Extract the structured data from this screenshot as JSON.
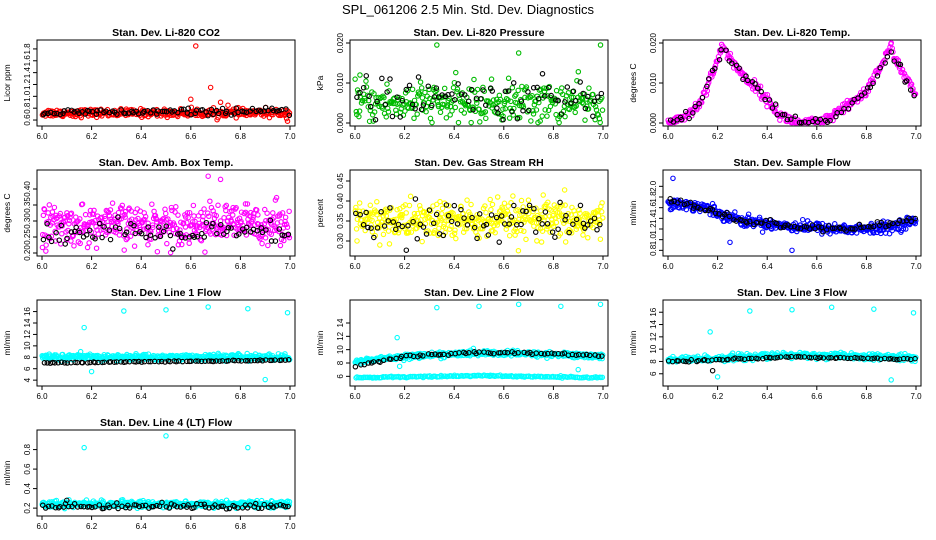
{
  "page_title": "SPL_061206  2.5 Min. Std. Dev. Diagnostics",
  "colors": {
    "red": "#ff0000",
    "green": "#00bb00",
    "magenta": "#ff00ff",
    "yellow": "#ffff00",
    "blue": "#0000ff",
    "cyan": "#00ffff",
    "black": "#000000"
  },
  "chart_data": [
    {
      "type": "scatter",
      "title": "Stan. Dev. Li-820 CO2",
      "ylabel": "Licor ppm",
      "xlim": [
        6.0,
        7.0
      ],
      "ylim": [
        0.55,
        1.9
      ],
      "xticks": [
        "6.0",
        "6.2",
        "6.4",
        "6.6",
        "6.8",
        "7.0"
      ],
      "yticks": [
        "0.6",
        "0.8",
        "1.0",
        "1.2",
        "1.4",
        "1.6",
        "1.8"
      ],
      "series": [
        {
          "name": "primary",
          "color": "#ff0000",
          "n": 330,
          "baseline": [
            [
              6.0,
              0.72
            ],
            [
              1.0,
              0.72
            ]
          ],
          "spread": 0.06,
          "outliers": [
            [
              6.62,
              1.85
            ],
            [
              6.68,
              1.15
            ],
            [
              6.6,
              0.95
            ],
            [
              6.72,
              0.9
            ],
            [
              6.75,
              0.85
            ],
            [
              6.99,
              0.58
            ]
          ]
        },
        {
          "name": "reference",
          "color": "#000000",
          "n": 90,
          "baseline": [
            [
              6.0,
              0.72
            ],
            [
              1.0,
              0.75
            ]
          ],
          "spread": 0.05,
          "outliers": []
        }
      ]
    },
    {
      "type": "scatter",
      "title": "Stan. Dev. Li-820 Pressure",
      "ylabel": "kPa",
      "xlim": [
        6.0,
        7.0
      ],
      "ylim": [
        0.0,
        0.02
      ],
      "xticks": [
        "6.0",
        "6.2",
        "6.4",
        "6.6",
        "6.8",
        "7.0"
      ],
      "yticks": [
        "0.000",
        "0.010",
        "0.020"
      ],
      "series": [
        {
          "name": "primary",
          "color": "#00bb00",
          "n": 330,
          "baseline": [
            [
              6.0,
              0.005
            ],
            [
              1.0,
              0.005
            ]
          ],
          "spread": 0.0045,
          "outliers": [
            [
              6.33,
              0.0195
            ],
            [
              6.66,
              0.0175
            ],
            [
              6.99,
              0.0195
            ],
            [
              6.02,
              0.012
            ]
          ]
        },
        {
          "name": "reference",
          "color": "#000000",
          "n": 80,
          "baseline": [
            [
              6.0,
              0.006
            ],
            [
              1.0,
              0.006
            ]
          ],
          "spread": 0.0045,
          "outliers": []
        }
      ]
    },
    {
      "type": "scatter",
      "title": "Stan. Dev. Li-820 Temp.",
      "ylabel": "degrees C",
      "xlim": [
        6.0,
        7.0
      ],
      "ylim": [
        0.0,
        0.02
      ],
      "xticks": [
        "6.0",
        "6.2",
        "6.4",
        "6.6",
        "6.8",
        "7.0"
      ],
      "yticks": [
        "0.000",
        "0.010",
        "0.020"
      ],
      "series": [
        {
          "name": "primary",
          "color": "#ff00ff",
          "n": 320,
          "baseline": [
            [
              6.0,
              0.0
            ],
            [
              6.08,
              0.002
            ],
            [
              6.13,
              0.005
            ],
            [
              6.22,
              0.019
            ],
            [
              6.3,
              0.012
            ],
            [
              6.37,
              0.008
            ],
            [
              6.45,
              0.002
            ],
            [
              6.52,
              0.0
            ],
            [
              6.62,
              0.0
            ],
            [
              6.72,
              0.004
            ],
            [
              6.8,
              0.008
            ],
            [
              6.9,
              0.019
            ],
            [
              6.95,
              0.012
            ],
            [
              7.0,
              0.007
            ]
          ],
          "spread": 0.0012,
          "outliers": []
        },
        {
          "name": "reference",
          "color": "#000000",
          "n": 75,
          "baseline": [
            [
              6.0,
              0.0
            ],
            [
              6.08,
              0.002
            ],
            [
              6.13,
              0.005
            ],
            [
              6.22,
              0.018
            ],
            [
              6.3,
              0.012
            ],
            [
              6.37,
              0.008
            ],
            [
              6.45,
              0.002
            ],
            [
              6.52,
              0.0
            ],
            [
              6.62,
              0.0
            ],
            [
              6.72,
              0.004
            ],
            [
              6.8,
              0.008
            ],
            [
              6.9,
              0.018
            ],
            [
              6.95,
              0.012
            ],
            [
              7.0,
              0.006
            ]
          ],
          "spread": 0.0012,
          "outliers": []
        }
      ]
    },
    {
      "type": "scatter",
      "title": "Stan. Dev. Amb. Box Temp.",
      "ylabel": "degrees C",
      "xlim": [
        6.0,
        7.0
      ],
      "ylim": [
        0.2,
        0.45
      ],
      "xticks": [
        "6.0",
        "6.2",
        "6.4",
        "6.6",
        "6.8",
        "7.0"
      ],
      "yticks": [
        "0.20",
        "0.25",
        "0.30",
        "0.35",
        "0.40"
      ],
      "series": [
        {
          "name": "primary",
          "color": "#ff00ff",
          "n": 430,
          "baseline": [
            [
              6.0,
              0.285
            ],
            [
              1.0,
              0.295
            ]
          ],
          "spread": 0.055,
          "outliers": [
            [
              6.67,
              0.44
            ],
            [
              6.72,
              0.43
            ]
          ]
        },
        {
          "name": "reference",
          "color": "#000000",
          "n": 80,
          "baseline": [
            [
              6.0,
              0.26
            ],
            [
              1.0,
              0.26
            ]
          ],
          "spread": 0.035,
          "outliers": []
        }
      ]
    },
    {
      "type": "scatter",
      "title": "Stan. Dev. Gas Stream RH",
      "ylabel": "percent",
      "xlim": [
        6.0,
        7.0
      ],
      "ylim": [
        0.27,
        0.47
      ],
      "xticks": [
        "6.0",
        "6.2",
        "6.4",
        "6.6",
        "6.8",
        "7.0"
      ],
      "yticks": [
        "0.30",
        "0.35",
        "0.40",
        "0.45"
      ],
      "series": [
        {
          "name": "primary",
          "color": "#ffff00",
          "n": 430,
          "baseline": [
            [
              6.0,
              0.35
            ],
            [
              1.0,
              0.35
            ]
          ],
          "spread": 0.045,
          "outliers": []
        },
        {
          "name": "reference",
          "color": "#000000",
          "n": 80,
          "baseline": [
            [
              6.0,
              0.35
            ],
            [
              1.0,
              0.35
            ]
          ],
          "spread": 0.04,
          "outliers": []
        }
      ]
    },
    {
      "type": "scatter",
      "title": "Stan. Dev. Sample Flow",
      "ylabel": "ml/min",
      "xlim": [
        6.0,
        7.0
      ],
      "ylim": [
        0.75,
        2.25
      ],
      "xticks": [
        "6.0",
        "6.2",
        "6.4",
        "6.6",
        "6.8",
        "7.0"
      ],
      "yticks": [
        "0.8",
        "1.0",
        "1.2",
        "1.4",
        "1.6",
        "1.8",
        "2.0"
      ],
      "series": [
        {
          "name": "primary",
          "color": "#0000ff",
          "n": 420,
          "baseline": [
            [
              6.0,
              1.7
            ],
            [
              6.15,
              1.6
            ],
            [
              6.3,
              1.35
            ],
            [
              6.5,
              1.25
            ],
            [
              6.7,
              1.2
            ],
            [
              6.85,
              1.2
            ],
            [
              7.0,
              1.35
            ]
          ],
          "spread": 0.09,
          "outliers": [
            [
              6.02,
              2.15
            ],
            [
              6.5,
              0.8
            ],
            [
              6.25,
              0.95
            ]
          ]
        },
        {
          "name": "reference",
          "color": "#000000",
          "n": 85,
          "baseline": [
            [
              6.0,
              1.75
            ],
            [
              6.15,
              1.6
            ],
            [
              6.3,
              1.35
            ],
            [
              6.5,
              1.25
            ],
            [
              6.7,
              1.2
            ],
            [
              6.85,
              1.25
            ],
            [
              7.0,
              1.4
            ]
          ],
          "spread": 0.06,
          "outliers": []
        }
      ]
    },
    {
      "type": "scatter",
      "title": "Stan. Dev. Line 1 Flow",
      "ylabel": "ml/min",
      "xlim": [
        6.0,
        7.0
      ],
      "ylim": [
        3.5,
        17.5
      ],
      "xticks": [
        "6.0",
        "6.2",
        "6.4",
        "6.6",
        "6.8",
        "7.0"
      ],
      "yticks": [
        "4",
        "6",
        "8",
        "10",
        "12",
        "14",
        "16"
      ],
      "series": [
        {
          "name": "primary",
          "color": "#00ffff",
          "n": 420,
          "baseline": [
            [
              6.0,
              8.0
            ],
            [
              1.0,
              8.0
            ]
          ],
          "spread": 0.5,
          "outliers": [
            [
              6.17,
              13.2
            ],
            [
              6.33,
              16.1
            ],
            [
              6.5,
              16.3
            ],
            [
              6.67,
              16.8
            ],
            [
              6.83,
              16.5
            ],
            [
              6.99,
              15.8
            ],
            [
              6.2,
              5.5
            ],
            [
              6.9,
              4.1
            ]
          ]
        },
        {
          "name": "reference",
          "color": "#000000",
          "n": 80,
          "baseline": [
            [
              6.0,
              7.0
            ],
            [
              1.0,
              7.5
            ]
          ],
          "spread": 0.08,
          "outliers": []
        }
      ]
    },
    {
      "type": "scatter",
      "title": "Stan. Dev. Line 2 Flow",
      "ylabel": "ml/min",
      "xlim": [
        6.0,
        7.0
      ],
      "ylim": [
        5.0,
        17.0
      ],
      "xticks": [
        "6.0",
        "6.2",
        "6.4",
        "6.6",
        "6.8",
        "7.0"
      ],
      "yticks": [
        "6",
        "8",
        "10",
        "12",
        "14"
      ],
      "series": [
        {
          "name": "primary",
          "color": "#00ffff",
          "n": 420,
          "baseline": [
            [
              6.0,
              8.2
            ],
            [
              6.2,
              9.0
            ],
            [
              6.5,
              9.5
            ],
            [
              6.8,
              9.3
            ],
            [
              7.0,
              9.0
            ]
          ],
          "spread": 0.35,
          "outliers": [
            [
              6.17,
              11.8
            ],
            [
              6.33,
              16.3
            ],
            [
              6.5,
              16.5
            ],
            [
              6.66,
              16.8
            ],
            [
              6.83,
              16.5
            ],
            [
              6.99,
              16.8
            ],
            [
              6.18,
              7.5
            ],
            [
              6.9,
              7.0
            ]
          ]
        },
        {
          "name": "secondary",
          "color": "#00ffff",
          "n": 180,
          "baseline": [
            [
              6.0,
              5.8
            ],
            [
              6.5,
              6.1
            ],
            [
              7.0,
              5.8
            ]
          ],
          "spread": 0.1,
          "outliers": []
        },
        {
          "name": "reference",
          "color": "#000000",
          "n": 70,
          "baseline": [
            [
              6.0,
              7.5
            ],
            [
              6.2,
              9.0
            ],
            [
              6.5,
              9.6
            ],
            [
              6.8,
              9.4
            ],
            [
              7.0,
              9.0
            ]
          ],
          "spread": 0.2,
          "outliers": []
        }
      ]
    },
    {
      "type": "scatter",
      "title": "Stan. Dev. Line 3 Flow",
      "ylabel": "ml/min",
      "xlim": [
        6.0,
        7.0
      ],
      "ylim": [
        4.5,
        17.5
      ],
      "xticks": [
        "6.0",
        "6.2",
        "6.4",
        "6.6",
        "6.8",
        "7.0"
      ],
      "yticks": [
        "6",
        "8",
        "10",
        "12",
        "14",
        "16"
      ],
      "series": [
        {
          "name": "primary",
          "color": "#00ffff",
          "n": 420,
          "baseline": [
            [
              6.0,
              8.2
            ],
            [
              6.5,
              9.0
            ],
            [
              7.0,
              8.6
            ]
          ],
          "spread": 0.45,
          "outliers": [
            [
              6.17,
              12.8
            ],
            [
              6.33,
              16.2
            ],
            [
              6.5,
              16.4
            ],
            [
              6.66,
              16.8
            ],
            [
              6.83,
              16.5
            ],
            [
              6.99,
              15.9
            ],
            [
              6.2,
              5.5
            ],
            [
              6.9,
              5.0
            ]
          ]
        },
        {
          "name": "reference",
          "color": "#000000",
          "n": 75,
          "baseline": [
            [
              6.0,
              8.0
            ],
            [
              6.5,
              8.7
            ],
            [
              7.0,
              8.4
            ]
          ],
          "spread": 0.12,
          "outliers": [
            [
              6.18,
              6.5
            ]
          ]
        }
      ]
    },
    {
      "type": "scatter",
      "title": "Stan. Dev. Line 4 (LT) Flow",
      "ylabel": "ml/min",
      "xlim": [
        6.0,
        7.0
      ],
      "ylim": [
        0.15,
        0.97
      ],
      "xticks": [
        "6.0",
        "6.2",
        "6.4",
        "6.6",
        "6.8",
        "7.0"
      ],
      "yticks": [
        "0.2",
        "0.4",
        "0.6",
        "0.8"
      ],
      "series": [
        {
          "name": "primary",
          "color": "#00ffff",
          "n": 420,
          "baseline": [
            [
              6.0,
              0.24
            ],
            [
              1.0,
              0.24
            ]
          ],
          "spread": 0.03,
          "outliers": [
            [
              6.17,
              0.82
            ],
            [
              6.5,
              0.94
            ],
            [
              6.83,
              0.82
            ]
          ]
        },
        {
          "name": "reference",
          "color": "#000000",
          "n": 85,
          "baseline": [
            [
              6.0,
              0.22
            ],
            [
              1.0,
              0.22
            ]
          ],
          "spread": 0.025,
          "outliers": [
            [
              6.1,
              0.28
            ]
          ]
        }
      ]
    }
  ]
}
